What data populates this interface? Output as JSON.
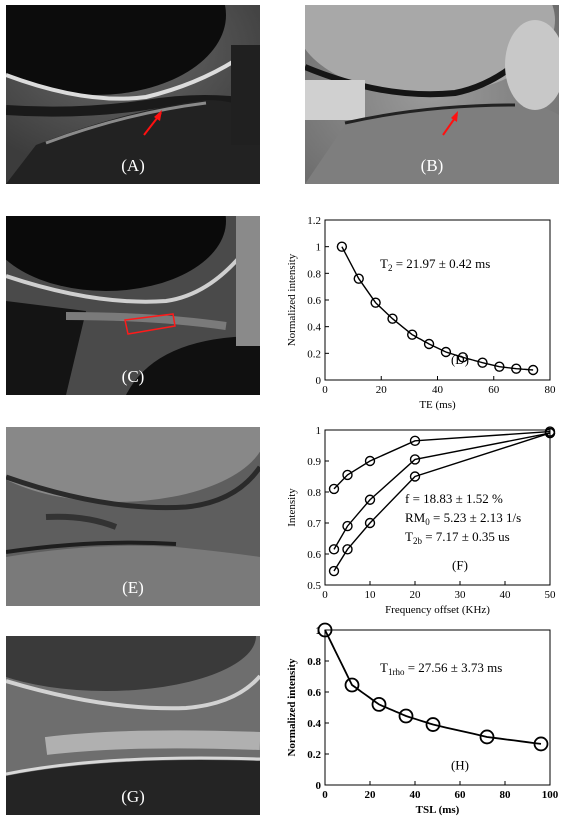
{
  "panels": {
    "A": {
      "label": "(A)"
    },
    "B": {
      "label": "(B)"
    },
    "C": {
      "label": "(C)"
    },
    "E": {
      "label": "(E)"
    },
    "G": {
      "label": "(G)"
    }
  },
  "chart_data": [
    {
      "id": "D",
      "type": "scatter",
      "panel_label": "(D)",
      "xlabel": "TE (ms)",
      "ylabel": "Normalized intensity",
      "xlim": [
        0,
        80
      ],
      "ylim": [
        0,
        1.2
      ],
      "xticks": [
        "0",
        "20",
        "40",
        "60",
        "80"
      ],
      "yticks": [
        "0",
        "0.2",
        "0.4",
        "0.6",
        "0.8",
        "1",
        "1.2"
      ],
      "annotation": {
        "prefix": "T",
        "sub": "2",
        "text": " = 21.97 ± 0.42 ms"
      },
      "series": [
        {
          "x": [
            6,
            12,
            18,
            24,
            31,
            37,
            43,
            49,
            56,
            62,
            68,
            74
          ],
          "y": [
            1.0,
            0.76,
            0.58,
            0.46,
            0.34,
            0.27,
            0.21,
            0.17,
            0.13,
            0.1,
            0.085,
            0.075
          ]
        }
      ]
    },
    {
      "id": "F",
      "type": "scatter",
      "panel_label": "(F)",
      "xlabel": "Frequency offset (KHz)",
      "ylabel": "Intensity",
      "xlim": [
        0,
        50
      ],
      "ylim": [
        0.5,
        1
      ],
      "xticks": [
        "0",
        "10",
        "20",
        "30",
        "40",
        "50"
      ],
      "yticks": [
        "0.5",
        "0.6",
        "0.7",
        "0.8",
        "0.9",
        "1"
      ],
      "annotations": [
        {
          "prefix": "f = 18.83 ",
          "sub": "",
          "text": "± 1.52 %"
        },
        {
          "prefix": "RM",
          "sub": "0",
          "text": " = 5.23 ± 2.13 1/s"
        },
        {
          "prefix": "T",
          "sub": "2b",
          "text": " = 7.17 ± 0.35 us"
        }
      ],
      "series": [
        {
          "x": [
            2,
            5,
            10,
            20,
            50
          ],
          "y": [
            0.81,
            0.855,
            0.9,
            0.965,
            0.995
          ]
        },
        {
          "x": [
            2,
            5,
            10,
            20,
            50
          ],
          "y": [
            0.615,
            0.69,
            0.775,
            0.905,
            0.99
          ]
        },
        {
          "x": [
            2,
            5,
            10,
            20,
            50
          ],
          "y": [
            0.545,
            0.615,
            0.7,
            0.85,
            0.99
          ]
        }
      ]
    },
    {
      "id": "H",
      "type": "scatter",
      "panel_label": "(H)",
      "xlabel": "TSL (ms)",
      "ylabel": "Normalized intensity",
      "xlim": [
        0,
        100
      ],
      "ylim": [
        0,
        1
      ],
      "xticks": [
        "0",
        "20",
        "40",
        "60",
        "80",
        "100"
      ],
      "yticks": [
        "0",
        "0.2",
        "0.4",
        "0.6",
        "0.8",
        "1"
      ],
      "annotation": {
        "prefix": "T",
        "sub": "1rho",
        "text": " = 27.56 ± 3.73 ms"
      },
      "series": [
        {
          "x": [
            0,
            12,
            24,
            36,
            48,
            72,
            96
          ],
          "y": [
            1.0,
            0.645,
            0.52,
            0.445,
            0.39,
            0.31,
            0.265
          ]
        }
      ]
    }
  ]
}
